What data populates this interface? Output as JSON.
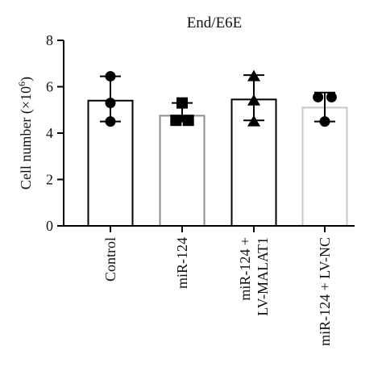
{
  "chart_data": {
    "type": "bar",
    "title": "End/E6E",
    "ylabel": "Cell number (×10^6)",
    "ylabel_parts": {
      "main": "Cell number (×10",
      "sup": "6",
      "close": ")"
    },
    "xlabel": "",
    "ylim": [
      0,
      8
    ],
    "yticks": [
      0,
      2,
      4,
      6,
      8
    ],
    "categories": [
      "Control",
      "miR-124",
      "miR-124 + LV-MALAT1",
      "miR-124 + LV-NC"
    ],
    "category_label_lines": [
      [
        "Control"
      ],
      [
        "miR-124"
      ],
      [
        "miR-124 +",
        "LV-MALAT1"
      ],
      [
        "miR-124 + LV-NC"
      ]
    ],
    "values": [
      5.4,
      4.75,
      5.45,
      5.1
    ],
    "error_bars": [
      {
        "low": 4.5,
        "high": 6.45
      },
      {
        "low": 4.5,
        "high": 5.3
      },
      {
        "low": 4.55,
        "high": 6.5
      },
      {
        "low": 4.5,
        "high": 5.75
      }
    ],
    "points": [
      [
        6.45,
        5.3,
        4.5
      ],
      [
        5.3,
        4.55,
        4.55
      ],
      [
        6.45,
        5.4,
        4.5
      ],
      [
        5.55,
        5.55,
        4.5
      ]
    ],
    "point_x_offsets": [
      [
        0,
        0,
        0
      ],
      [
        0,
        -0.55,
        0.55
      ],
      [
        0,
        0,
        0
      ],
      [
        -0.6,
        0.6,
        0
      ]
    ],
    "markers": [
      "circle",
      "square",
      "triangle",
      "circle"
    ],
    "bar_edge_colors": [
      "#000000",
      "#8c8c8c",
      "#000000",
      "#c8c8c8"
    ],
    "bar_fill": "#ffffff",
    "point_color": "#000000",
    "grid": false,
    "legend": "none"
  }
}
